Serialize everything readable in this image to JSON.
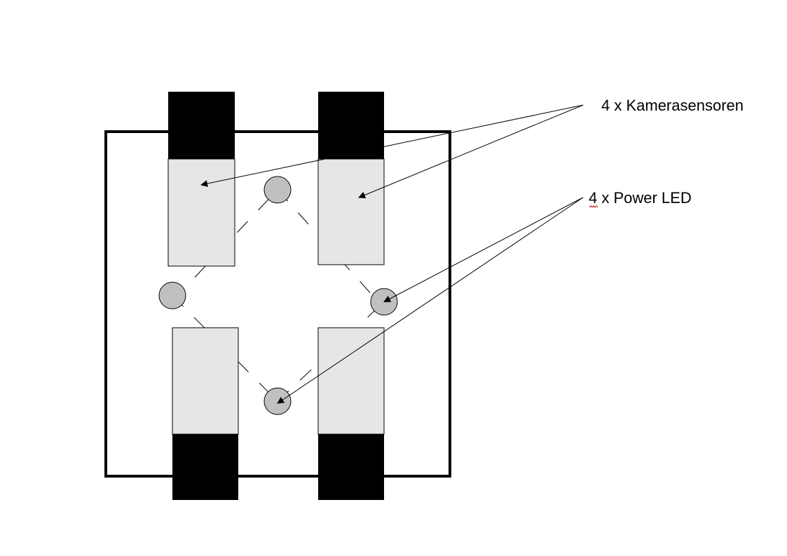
{
  "labels": {
    "camera_sensors": "4 x Kamerasensoren",
    "power_led": "4 x Power LED"
  },
  "colors": {
    "board_outline": "#000000",
    "sensor_cap": "#000000",
    "sensor_body": "#e6e6e6",
    "led_fill": "#c0c0c0",
    "line": "#000000",
    "spell_check_underline": "#cc0000"
  },
  "components": {
    "camera_sensor_count": 4,
    "power_led_count": 4
  }
}
